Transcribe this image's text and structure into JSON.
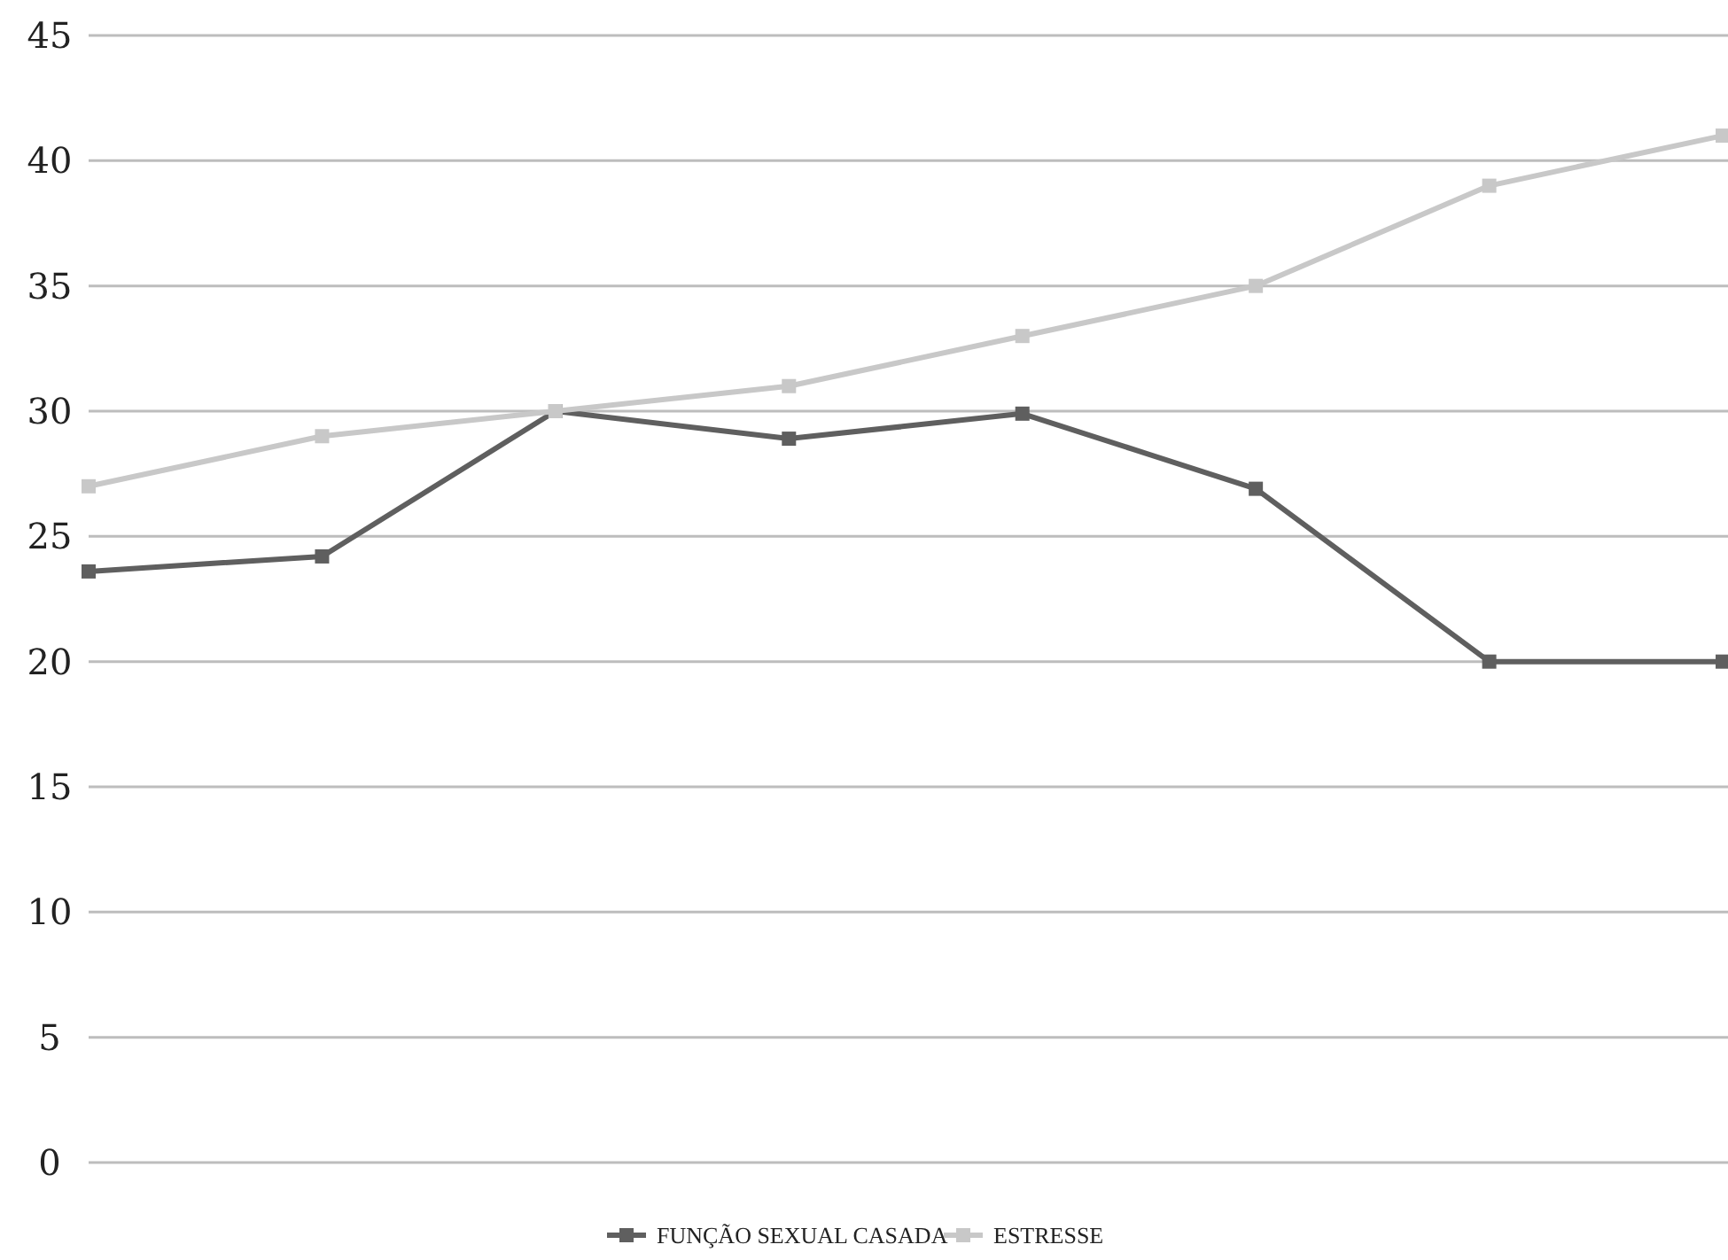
{
  "chart_data": {
    "type": "line",
    "categories": [
      null,
      null,
      null,
      null,
      null,
      null,
      null,
      null
    ],
    "series": [
      {
        "name": "FUNÇÃO SEXUAL CASADA",
        "color": "#5f5f5f",
        "values": [
          23.6,
          24.2,
          30,
          28.9,
          29.9,
          26.9,
          20,
          20
        ]
      },
      {
        "name": "ESTRESSE",
        "color": "#c8c8c8",
        "values": [
          27,
          29,
          30,
          31,
          33,
          35,
          39,
          41
        ]
      }
    ],
    "ylim": [
      0,
      45
    ],
    "yticks": [
      0,
      5,
      10,
      15,
      20,
      25,
      30,
      35,
      40,
      45
    ],
    "grid": "y",
    "legend": "bottom",
    "marker": "square",
    "line_style": "solid"
  }
}
